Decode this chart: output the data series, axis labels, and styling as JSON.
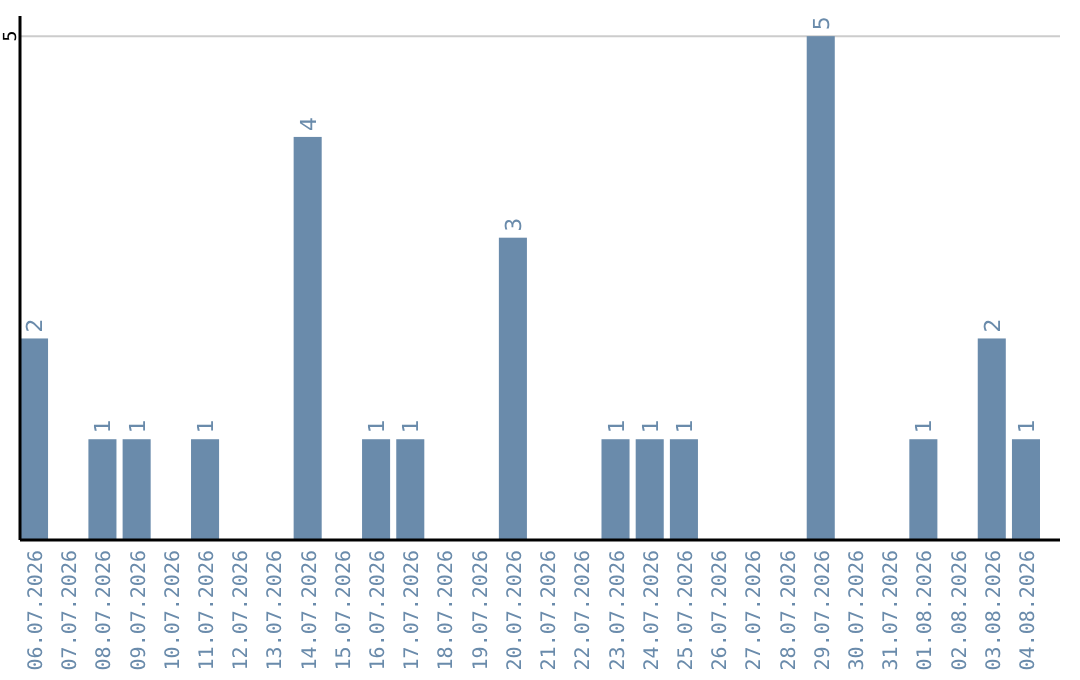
{
  "chart_data": {
    "type": "bar",
    "categories": [
      "06.07.2026",
      "07.07.2026",
      "08.07.2026",
      "09.07.2026",
      "10.07.2026",
      "11.07.2026",
      "12.07.2026",
      "13.07.2026",
      "14.07.2026",
      "15.07.2026",
      "16.07.2026",
      "17.07.2026",
      "18.07.2026",
      "19.07.2026",
      "20.07.2026",
      "21.07.2026",
      "22.07.2026",
      "23.07.2026",
      "24.07.2026",
      "25.07.2026",
      "26.07.2026",
      "27.07.2026",
      "28.07.2026",
      "29.07.2026",
      "30.07.2026",
      "31.07.2026",
      "01.08.2026",
      "02.08.2026",
      "03.08.2026",
      "04.08.2026"
    ],
    "values": [
      2,
      null,
      1,
      1,
      null,
      1,
      null,
      null,
      4,
      null,
      1,
      1,
      null,
      null,
      3,
      null,
      null,
      1,
      1,
      1,
      null,
      null,
      null,
      5,
      null,
      null,
      1,
      null,
      2,
      1
    ],
    "color": "#6a8bab",
    "ylim": [
      0,
      5.2
    ],
    "yticks": [
      5
    ],
    "grid": "y",
    "data_labels": true
  }
}
